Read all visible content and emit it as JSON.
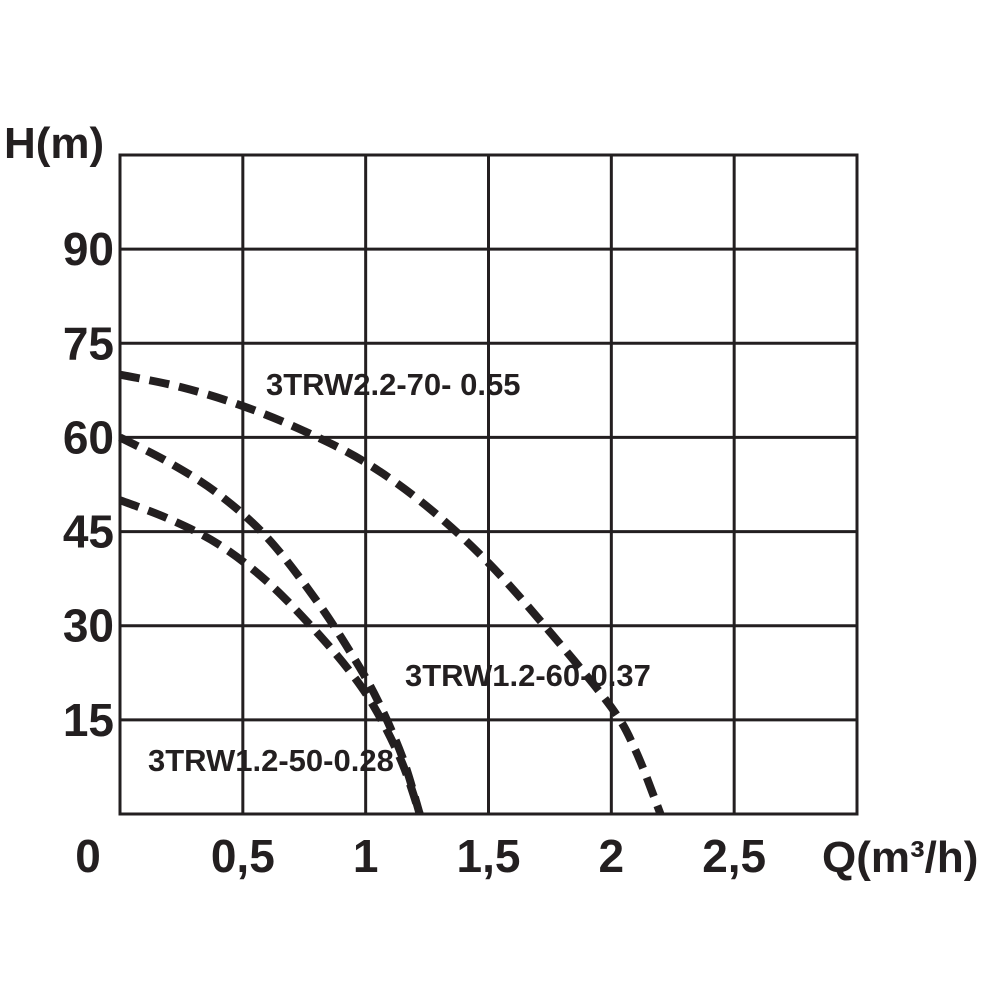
{
  "chart_data": {
    "type": "line",
    "xlabel": "Q(m³/h)",
    "ylabel": "H(m)",
    "xlim": [
      0,
      3
    ],
    "ylim": [
      0,
      105
    ],
    "x_ticks": [
      0,
      0.5,
      1,
      1.5,
      2,
      2.5
    ],
    "x_tick_labels": [
      "0",
      "0,5",
      "1",
      "1,5",
      "2",
      "2,5"
    ],
    "y_ticks": [
      15,
      30,
      45,
      60,
      75,
      90
    ],
    "y_tick_labels": [
      "15",
      "30",
      "45",
      "60",
      "75",
      "90"
    ],
    "grid": true,
    "series": [
      {
        "name": "3TRW2.2-70- 0.55",
        "x": [
          0,
          0.25,
          0.5,
          0.75,
          1.0,
          1.25,
          1.5,
          1.75,
          2.0,
          2.1,
          2.2
        ],
        "y": [
          70,
          68,
          65,
          61,
          56,
          49,
          40,
          29,
          17,
          10,
          0
        ]
      },
      {
        "name": "3TRW1.2-60-0.37",
        "x": [
          0,
          0.2,
          0.4,
          0.6,
          0.8,
          0.95,
          1.05,
          1.15,
          1.22
        ],
        "y": [
          60,
          56,
          51,
          44,
          34,
          25,
          18,
          9,
          0
        ]
      },
      {
        "name": "3TRW1.2-50-0.28",
        "x": [
          0,
          0.2,
          0.4,
          0.6,
          0.8,
          0.95,
          1.05,
          1.15,
          1.22
        ],
        "y": [
          50,
          47,
          43,
          37,
          29,
          22,
          16,
          8,
          0
        ]
      }
    ]
  }
}
